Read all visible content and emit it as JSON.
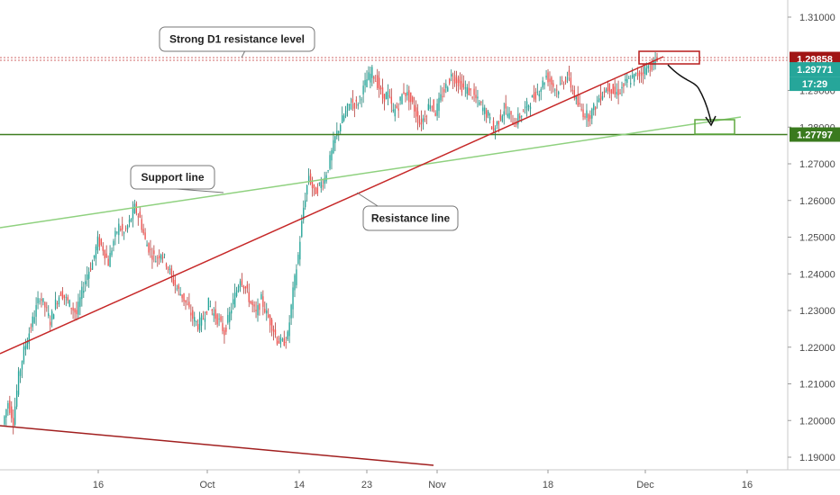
{
  "chart_data": {
    "type": "candlestick",
    "x_ticks": [
      "16",
      "Oct",
      "14",
      "23",
      "Nov",
      "18",
      "Dec",
      "16"
    ],
    "y_ticks": [
      "1.31000",
      "1.29000",
      "1.28000",
      "1.27000",
      "1.26000",
      "1.25000",
      "1.24000",
      "1.23000",
      "1.22000",
      "1.21000",
      "1.20000",
      "1.19000"
    ],
    "ylim": [
      1.185,
      1.315
    ],
    "price_labels": {
      "resistance": "1.29858",
      "current": "1.29771",
      "countdown": "17:29",
      "support": "1.27797"
    },
    "levels": {
      "resistance": 1.29858,
      "current": 1.29771,
      "support": 1.27797
    },
    "annotations": {
      "resistance_level": "Strong D1 resistance level",
      "support_line": "Support line",
      "resistance_line": "Resistance line"
    },
    "price_path": [
      1.199,
      1.205,
      1.2,
      1.212,
      1.219,
      1.224,
      1.229,
      1.234,
      1.231,
      1.227,
      1.232,
      1.235,
      1.233,
      1.231,
      1.229,
      1.235,
      1.24,
      1.243,
      1.249,
      1.247,
      1.243,
      1.249,
      1.253,
      1.251,
      1.254,
      1.258,
      1.255,
      1.249,
      1.246,
      1.244,
      1.246,
      1.243,
      1.239,
      1.236,
      1.234,
      1.231,
      1.228,
      1.226,
      1.228,
      1.232,
      1.229,
      1.227,
      1.224,
      1.229,
      1.234,
      1.239,
      1.236,
      1.232,
      1.229,
      1.233,
      1.229,
      1.226,
      1.222,
      1.221,
      1.223,
      1.235,
      1.245,
      1.258,
      1.267,
      1.262,
      1.264,
      1.266,
      1.271,
      1.277,
      1.281,
      1.284,
      1.287,
      1.286,
      1.289,
      1.293,
      1.295,
      1.292,
      1.288,
      1.289,
      1.284,
      1.286,
      1.29,
      1.288,
      1.285,
      1.281,
      1.283,
      1.287,
      1.284,
      1.288,
      1.291,
      1.294,
      1.293,
      1.291,
      1.29,
      1.289,
      1.287,
      1.285,
      1.283,
      1.279,
      1.282,
      1.285,
      1.283,
      1.281,
      1.283,
      1.285,
      1.287,
      1.289,
      1.291,
      1.294,
      1.292,
      1.29,
      1.292,
      1.294,
      1.29,
      1.286,
      1.284,
      1.283,
      1.285,
      1.288,
      1.29,
      1.291,
      1.289,
      1.29,
      1.292,
      1.293,
      1.294,
      1.295,
      1.296,
      1.297,
      1.298
    ]
  }
}
